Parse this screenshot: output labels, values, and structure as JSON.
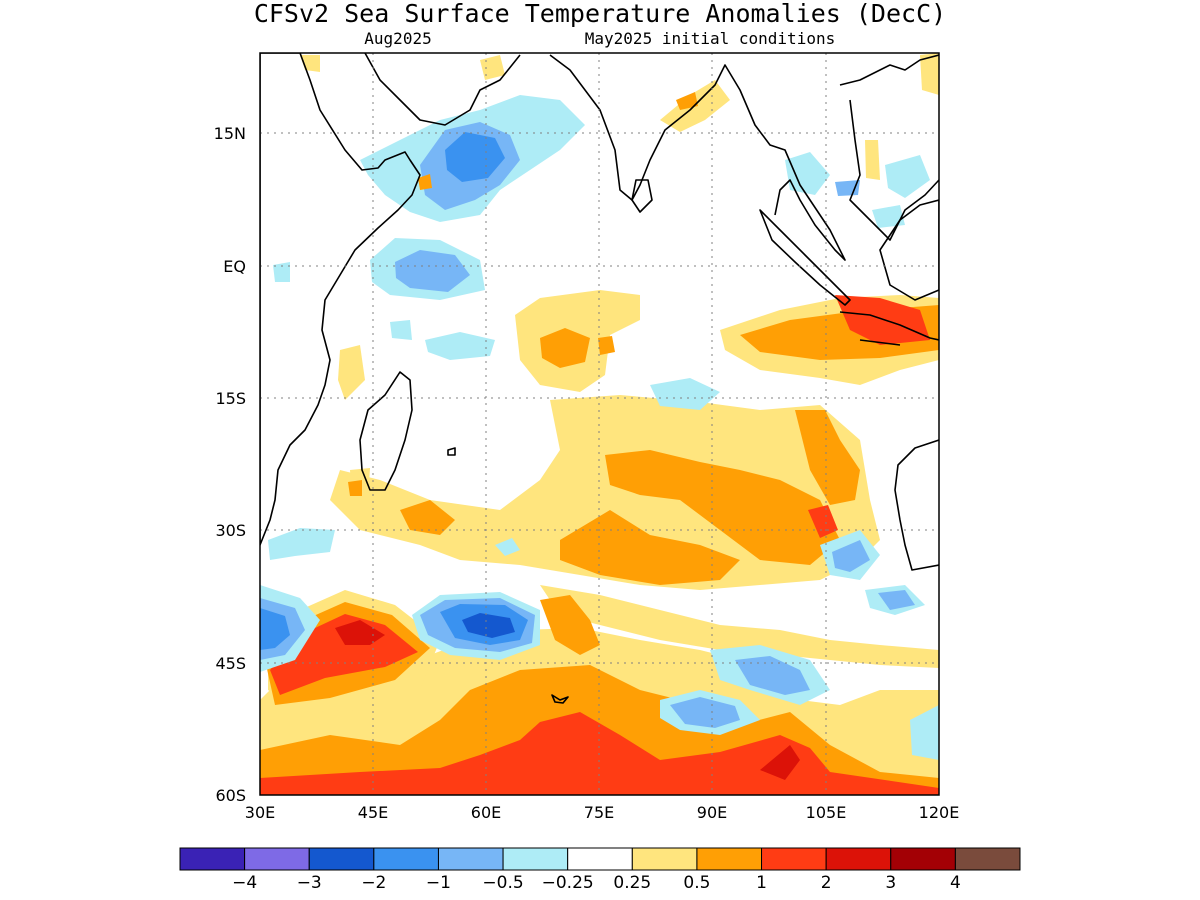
{
  "title": "CFSv2 Sea Surface Temperature Anomalies (DecC)",
  "subtitle_left": "Aug2025",
  "subtitle_right": "May2025 initial conditions",
  "map": {
    "lon_range": [
      30,
      120
    ],
    "lat_range": [
      -60,
      24
    ],
    "lon_ticks": [
      "30E",
      "45E",
      "60E",
      "75E",
      "90E",
      "105E",
      "120E"
    ],
    "lat_ticks": [
      "15N",
      "EQ",
      "15S",
      "30S",
      "45S",
      "60S"
    ]
  },
  "colorbar": {
    "colors": [
      "#3a22b5",
      "#7e6ae6",
      "#1458cf",
      "#3a92f0",
      "#77b6f6",
      "#aeecf6",
      "#ffffff",
      "#ffe57e",
      "#ff9f05",
      "#ff3c14",
      "#dc1208",
      "#a30005",
      "#7a4b3c"
    ],
    "labels": [
      "−4",
      "−3",
      "−2",
      "−1",
      "−0.5",
      "−0.25",
      "0.25",
      "0.5",
      "1",
      "2",
      "3",
      "4"
    ]
  }
}
